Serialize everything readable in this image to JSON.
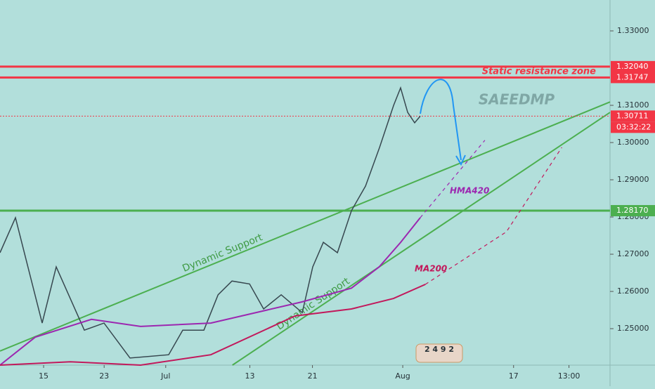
{
  "chart_data": {
    "type": "line",
    "watermark": "SAEEDMP",
    "xlim": [
      -4.25,
      55.2
    ],
    "ylim": [
      1.2402,
      1.3383
    ],
    "xticks": [
      {
        "value": 0,
        "label": "15"
      },
      {
        "value": 5.9,
        "label": "23"
      },
      {
        "value": 11.9,
        "label": "Jul"
      },
      {
        "value": 20.1,
        "label": "13"
      },
      {
        "value": 26.2,
        "label": "21"
      },
      {
        "value": 35,
        "label": "Aug"
      },
      {
        "value": 45.8,
        "label": "17"
      },
      {
        "value": 51.2,
        "label": "13:00"
      }
    ],
    "yticks": [
      {
        "value": 1.25,
        "label": "1.25000"
      },
      {
        "value": 1.26,
        "label": "1.26000"
      },
      {
        "value": 1.27,
        "label": "1.27000"
      },
      {
        "value": 1.28,
        "label": "1.28000"
      },
      {
        "value": 1.29,
        "label": "1.29000"
      },
      {
        "value": 1.3,
        "label": "1.30000"
      },
      {
        "value": 1.31,
        "label": "1.31000"
      },
      {
        "value": 1.33,
        "label": "1.33000"
      }
    ],
    "series": [
      {
        "color": "#37474f",
        "x": [
          -4.25,
          -2.74,
          -0.14,
          1.23,
          3.97,
          5.89,
          8.42,
          12.19,
          13.56,
          15.62,
          17,
          18.36,
          20.07,
          21.44,
          23.15,
          25.21,
          26.23,
          27.26,
          28.63,
          30,
          31.37,
          32.74,
          34.11,
          34.79,
          35.48,
          36.16,
          36.71
        ],
        "values": [
          1.2704,
          1.2798,
          1.2515,
          1.2666,
          1.2496,
          1.2515,
          1.2421,
          1.243,
          1.2496,
          1.2496,
          1.2591,
          1.2628,
          1.262,
          1.2553,
          1.2591,
          1.2543,
          1.2666,
          1.2732,
          1.2704,
          1.2817,
          1.2883,
          1.2987,
          1.31,
          1.3147,
          1.3081,
          1.3053,
          1.3071
        ]
      },
      {
        "name": "HMA420",
        "color": "#9c27b0",
        "x": [
          -4.25,
          -0.82,
          4.66,
          9.45,
          16.3,
          25.2,
          30,
          32.7,
          34.8,
          36.7
        ],
        "values": [
          1.2402,
          1.2477,
          1.2525,
          1.2506,
          1.2515,
          1.2572,
          1.2609,
          1.2666,
          1.2732,
          1.2798
        ]
      },
      {
        "color": "#9c27b0",
        "dash": true,
        "x": [
          36.7,
          43
        ],
        "values": [
          1.2798,
          1.3006
        ]
      },
      {
        "name": "MA200",
        "color": "#c2185b",
        "x": [
          -4.25,
          2.6,
          9.45,
          16.3,
          24.5,
          30,
          34.1,
          37.2
        ],
        "values": [
          1.2402,
          1.2411,
          1.2402,
          1.243,
          1.2534,
          1.2553,
          1.2581,
          1.2619
        ]
      },
      {
        "color": "#c2185b",
        "dash": true,
        "x": [
          37.2,
          45.1,
          50.5
        ],
        "values": [
          1.2619,
          1.276,
          1.2987
        ]
      }
    ],
    "trendlines": [
      {
        "label": "Dynamic Support",
        "color": "#4caf50",
        "x": [
          -4.25,
          55.2
        ],
        "values": [
          1.244,
          1.3109
        ]
      },
      {
        "label": "Dynamic Support",
        "color": "#4caf50",
        "x": [
          18.4,
          55.2
        ],
        "values": [
          1.2402,
          1.3081
        ]
      }
    ],
    "levels": [
      {
        "value": 1.3204,
        "label": "1.32040",
        "color": "#f23645"
      },
      {
        "value": 1.31747,
        "label": "1.31747",
        "color": "#f23645"
      },
      {
        "value": 1.30711,
        "label": "1.30711",
        "color": "#f23645",
        "dotted": true,
        "countdown": "03:32:22"
      },
      {
        "value": 1.2817,
        "label": "1.28170",
        "color": "#4caf50"
      }
    ],
    "annotation": "Static resistance zone",
    "badge": "2 4 9 2"
  }
}
